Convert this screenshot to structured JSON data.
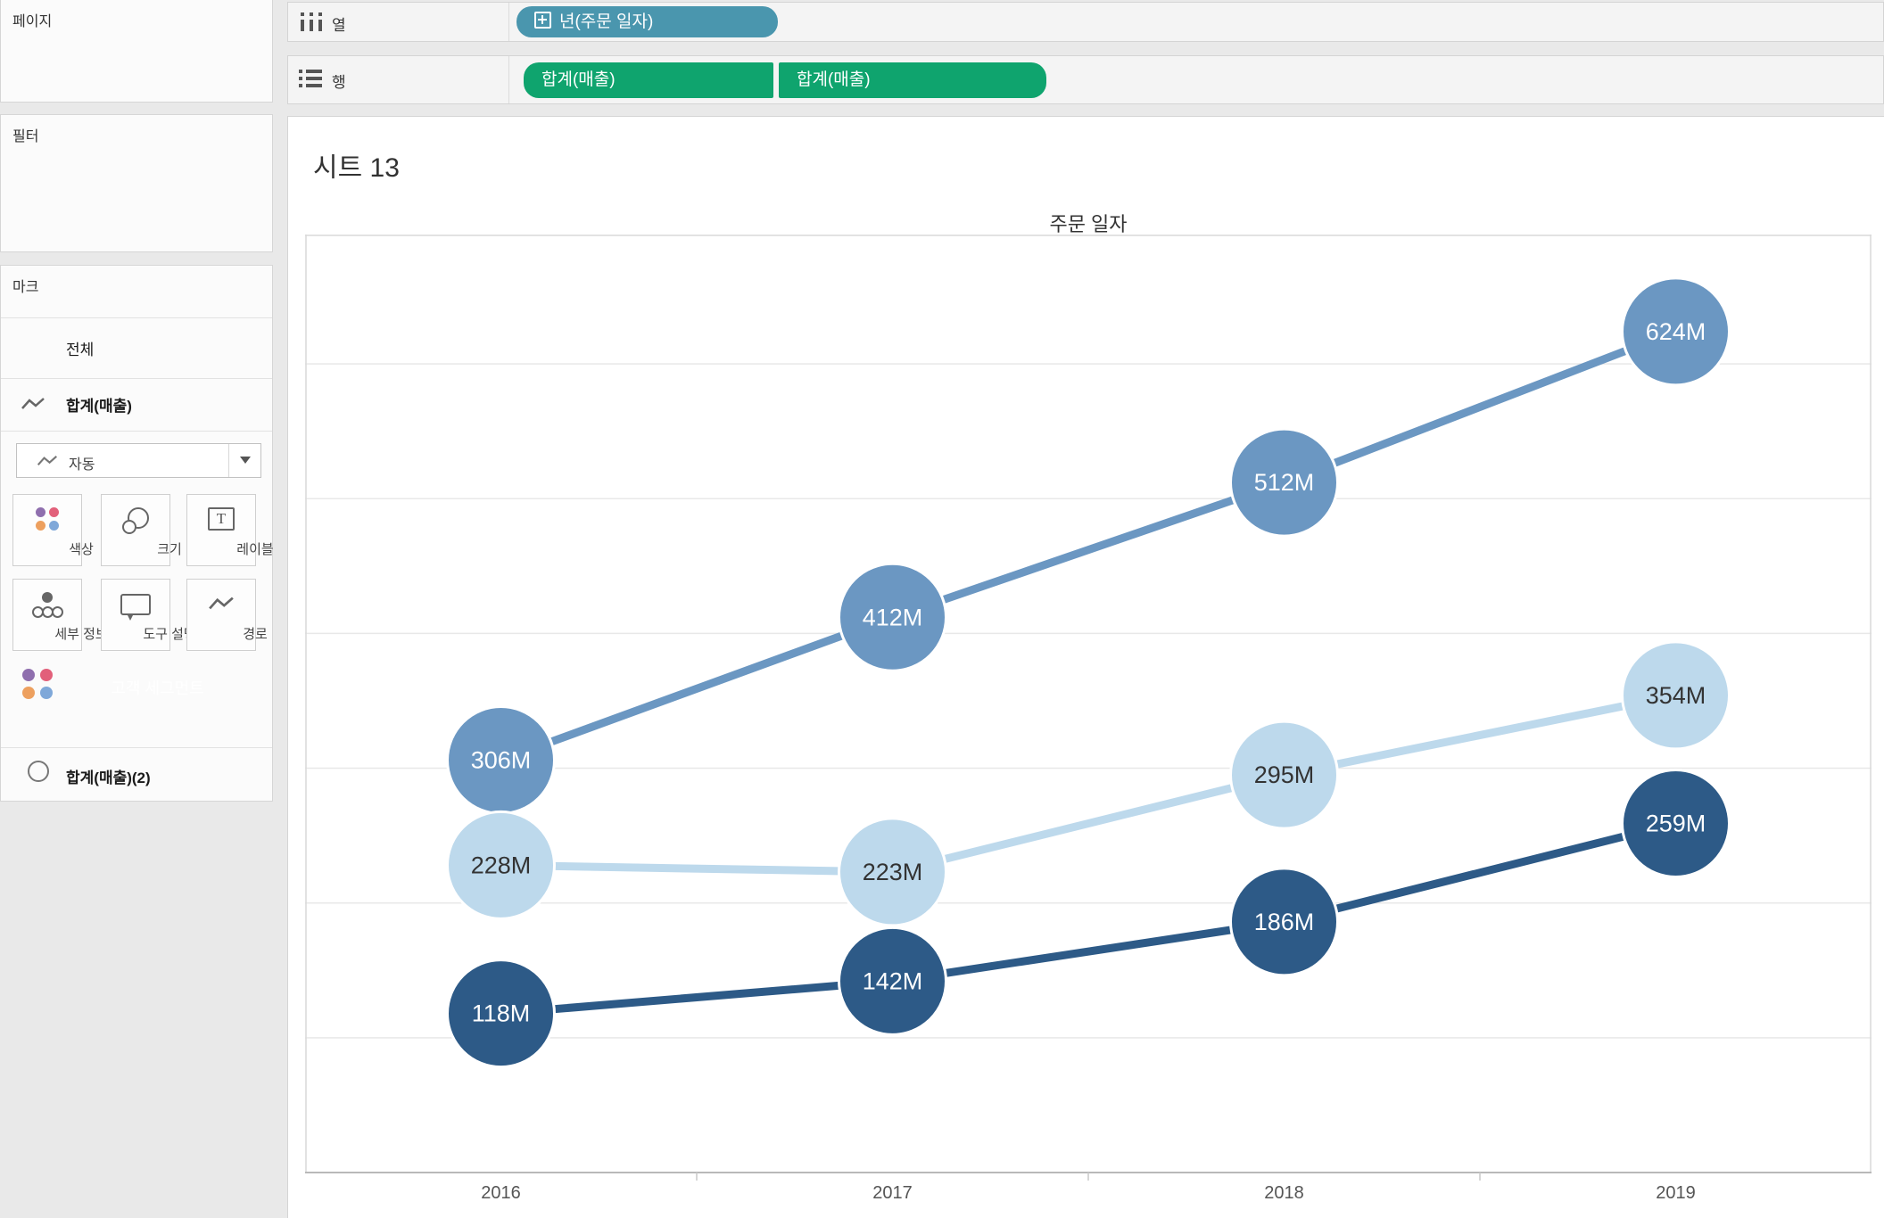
{
  "app": {
    "background": "#e9e9e9"
  },
  "sidebar": {
    "pages_panel": {
      "title": "페이지"
    },
    "filters_panel": {
      "title": "필터"
    },
    "marks_panel": {
      "title": "마크",
      "all_label": "전체",
      "first_card_label": "합계(매출)",
      "mark_type_dropdown": {
        "value": "자동"
      },
      "buttons": [
        {
          "label": "색상"
        },
        {
          "label": "크기"
        },
        {
          "label": "레이블"
        },
        {
          "label": "세부 정보"
        },
        {
          "label": "도구 설명"
        },
        {
          "label": "경로"
        }
      ],
      "color_pill": {
        "label": "고객 세그먼트",
        "color": "#4a96ae"
      },
      "second_card_label": "합계(매출)(2)",
      "dot_colors": [
        "#8f6fae",
        "#e2607a",
        "#eda05f",
        "#7fa8d9"
      ]
    }
  },
  "shelves": {
    "columns": {
      "label": "열",
      "pills": [
        {
          "label": "년(주문 일자)",
          "color": "#4a96ae"
        }
      ]
    },
    "rows": {
      "label": "행",
      "pills": [
        {
          "label": "합계(매출)",
          "color": "#0fa46e"
        },
        {
          "label": "합계(매출)",
          "color": "#0fa46e"
        }
      ]
    }
  },
  "sheet": {
    "title": "시트 13"
  },
  "chart_data": {
    "type": "line",
    "title": "주문 일자",
    "x": [
      2016,
      2017,
      2018,
      2019
    ],
    "unit": "M",
    "ylim": [
      0,
      696
    ],
    "gridline_step": 100,
    "grid_on": true,
    "series": [
      {
        "name": "sum-sales-medium-blue",
        "color": "#6b97c2",
        "label_color": "#ffffff",
        "values": [
          306,
          412,
          512,
          624
        ],
        "labels": [
          "306M",
          "412M",
          "512M",
          "624M"
        ]
      },
      {
        "name": "sum-sales-light-blue",
        "color": "#bdd9ec",
        "label_color": "#333333",
        "values": [
          228,
          223,
          295,
          354
        ],
        "labels": [
          "228M",
          "223M",
          "295M",
          "354M"
        ]
      },
      {
        "name": "sum-sales-dark-blue",
        "color": "#2d5a87",
        "label_color": "#ffffff",
        "values": [
          118,
          142,
          186,
          259
        ],
        "labels": [
          "118M",
          "142M",
          "186M",
          "259M"
        ]
      }
    ]
  }
}
